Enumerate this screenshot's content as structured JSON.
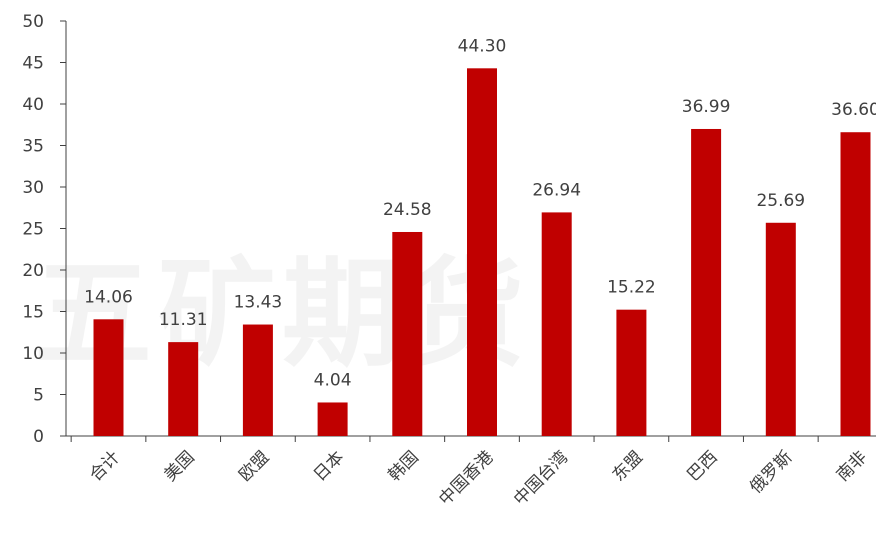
{
  "watermark": "五矿期货",
  "chart_data": {
    "type": "bar",
    "categories": [
      "合计",
      "美国",
      "欧盟",
      "日本",
      "韩国",
      "中国香港",
      "中国台湾",
      "东盟",
      "巴西",
      "俄罗斯",
      "南非"
    ],
    "values": [
      14.06,
      11.31,
      13.43,
      4.04,
      24.58,
      44.3,
      26.94,
      15.22,
      36.99,
      25.69,
      36.6
    ],
    "data_labels": [
      "14.06",
      "11.31",
      "13.43",
      "4.04",
      "24.58",
      "44.30",
      "26.94",
      "15.22",
      "36.99",
      "25.69",
      "36.60"
    ],
    "y_ticks": [
      "0",
      "5",
      "10",
      "15",
      "20",
      "25",
      "30",
      "35",
      "40",
      "45",
      "50"
    ],
    "ylim": [
      0,
      50
    ],
    "bar_color": "#C00000",
    "grid": false,
    "title": "",
    "xlabel": "",
    "ylabel": ""
  }
}
